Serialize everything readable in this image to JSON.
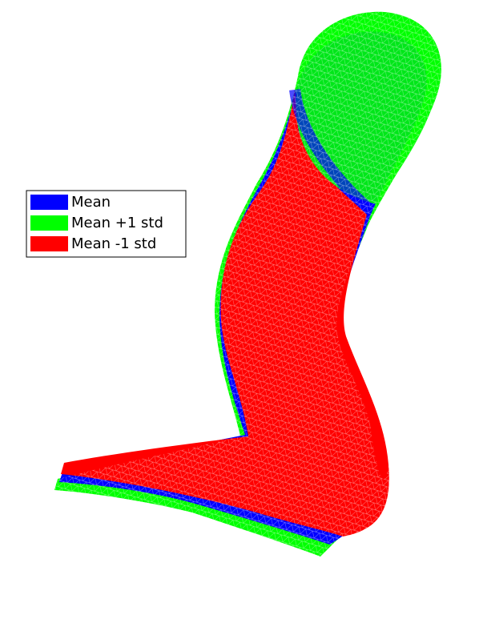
{
  "legend": {
    "items": [
      {
        "label": "Mean",
        "color": "#0000ff"
      },
      {
        "label": "Mean +1 std",
        "color": "#00ff00"
      },
      {
        "label": "Mean -1 std",
        "color": "#ff0000"
      }
    ]
  }
}
